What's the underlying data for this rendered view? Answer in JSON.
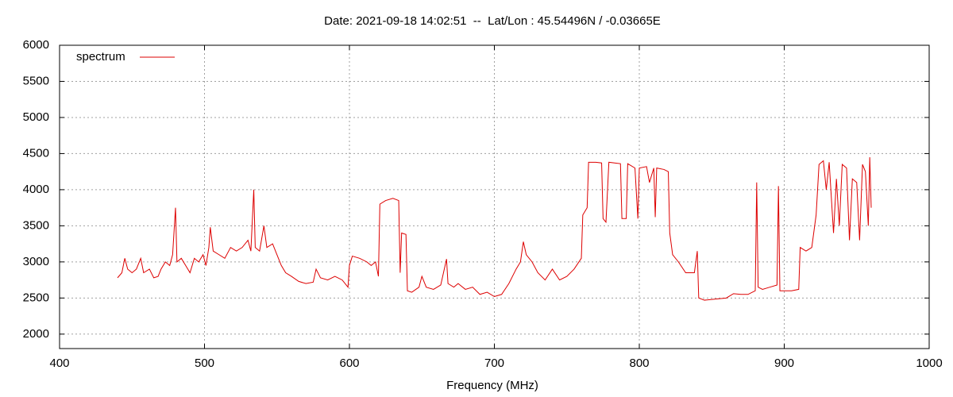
{
  "chart_data": {
    "type": "line",
    "title": "Date: 2021-09-18 14:02:51  --  Lat/Lon : 45.54496N / -0.03665E",
    "xlabel": "Frequency (MHz)",
    "xlim": [
      400,
      1000
    ],
    "xticks": [
      400,
      500,
      600,
      700,
      800,
      900,
      1000
    ],
    "ylim": [
      1800,
      6000
    ],
    "yticks": [
      2000,
      2500,
      3000,
      3500,
      4000,
      4500,
      5000,
      5500,
      6000
    ],
    "grid": true,
    "legend": "top-left",
    "x": [
      440,
      443,
      445,
      447,
      450,
      453,
      456,
      458,
      462,
      465,
      468,
      470,
      473,
      476,
      478,
      480,
      481,
      484,
      487,
      490,
      493,
      496,
      499,
      501,
      503,
      504,
      506,
      510,
      514,
      518,
      522,
      526,
      530,
      532,
      534,
      535,
      538,
      541,
      543,
      547,
      550,
      553,
      556,
      560,
      565,
      570,
      575,
      577,
      580,
      585,
      590,
      595,
      599,
      600,
      602,
      607,
      612,
      615,
      618,
      620,
      621,
      625,
      630,
      634,
      635,
      636,
      639,
      640,
      643,
      648,
      650,
      653,
      658,
      663,
      667,
      668,
      672,
      675,
      680,
      685,
      690,
      695,
      700,
      705,
      710,
      715,
      718,
      720,
      722,
      726,
      730,
      735,
      740,
      745,
      750,
      755,
      760,
      761,
      764,
      765,
      770,
      774,
      775,
      777,
      779,
      787,
      788,
      791,
      792,
      797,
      799,
      800,
      805,
      807,
      810,
      811,
      812,
      817,
      820,
      821,
      823,
      827,
      832,
      838,
      840,
      841,
      845,
      850,
      855,
      860,
      865,
      870,
      875,
      880,
      881,
      882,
      885,
      890,
      895,
      896,
      897,
      900,
      905,
      910,
      911,
      915,
      919,
      922,
      924,
      927,
      929,
      931,
      934,
      936,
      938,
      940,
      943,
      945,
      947,
      950,
      952,
      954,
      956,
      958,
      959,
      960
    ],
    "series": [
      {
        "name": "spectrum",
        "color": "#dd0000",
        "values": [
          2780,
          2850,
          3050,
          2900,
          2850,
          2900,
          3050,
          2850,
          2900,
          2780,
          2800,
          2900,
          3000,
          2950,
          3100,
          3750,
          3000,
          3050,
          2950,
          2850,
          3050,
          3000,
          3100,
          2950,
          3200,
          3480,
          3150,
          3100,
          3050,
          3200,
          3150,
          3200,
          3300,
          3150,
          4000,
          3200,
          3150,
          3500,
          3200,
          3250,
          3100,
          2950,
          2850,
          2800,
          2730,
          2700,
          2720,
          2900,
          2780,
          2750,
          2800,
          2750,
          2650,
          2950,
          3080,
          3050,
          3000,
          2950,
          3000,
          2800,
          3800,
          3850,
          3880,
          3850,
          2850,
          3400,
          3380,
          2600,
          2580,
          2650,
          2800,
          2650,
          2620,
          2680,
          3040,
          2700,
          2650,
          2700,
          2620,
          2650,
          2550,
          2580,
          2520,
          2550,
          2700,
          2900,
          3000,
          3280,
          3100,
          3000,
          2850,
          2750,
          2900,
          2750,
          2800,
          2900,
          3050,
          3650,
          3750,
          4380,
          4380,
          4370,
          3600,
          3550,
          4380,
          4360,
          3600,
          3600,
          4360,
          4300,
          3600,
          4300,
          4320,
          4100,
          4300,
          3620,
          4300,
          4280,
          4250,
          3400,
          3100,
          3000,
          2850,
          2850,
          3150,
          2500,
          2470,
          2480,
          2490,
          2500,
          2560,
          2550,
          2550,
          2600,
          4100,
          2650,
          2620,
          2650,
          2680,
          4050,
          2600,
          2600,
          2600,
          2620,
          3200,
          3150,
          3200,
          3650,
          4350,
          4400,
          4000,
          4380,
          3400,
          4150,
          3500,
          4350,
          4300,
          3300,
          4150,
          4100,
          3300,
          4350,
          4250,
          3500,
          4450,
          3750
        ]
      }
    ]
  }
}
